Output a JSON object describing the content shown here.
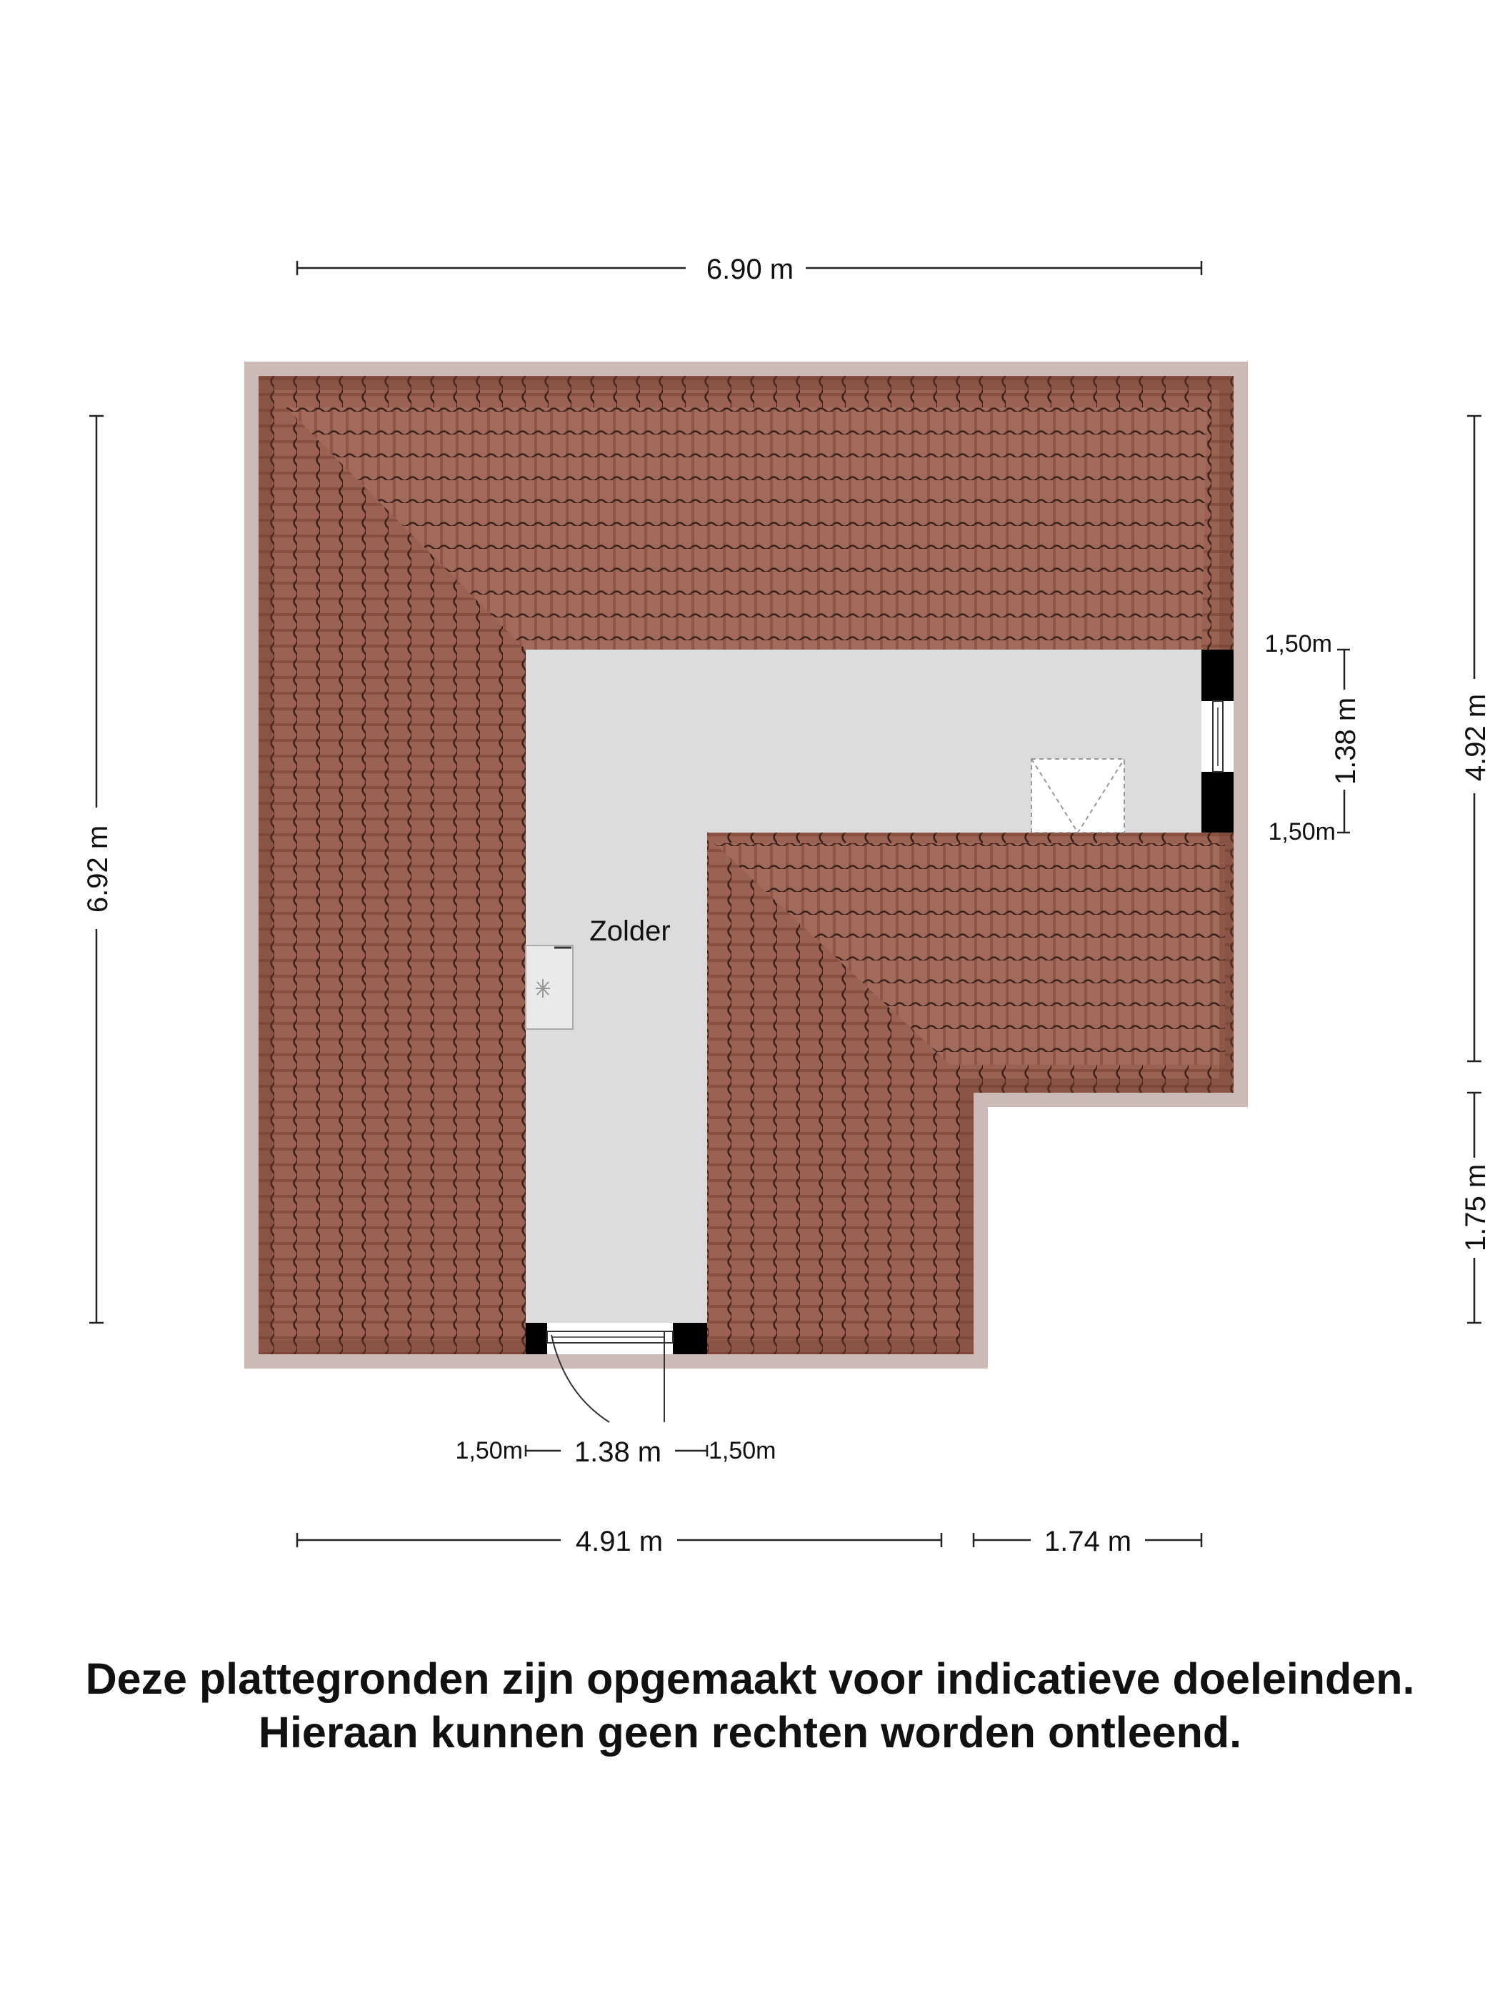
{
  "room": {
    "name": "Zolder"
  },
  "dimensions": {
    "top_width": "6.90 m",
    "left_height": "6.92 m",
    "right_upper": "4.92 m",
    "right_lower": "1.75 m",
    "window_width": "1.38 m",
    "window_top_height": "1,50m",
    "window_bottom_height": "1,50m",
    "door_width": "1.38 m",
    "door_left_height": "1,50m",
    "door_right_height": "1,50m",
    "bottom_left": "4.91 m",
    "bottom_right": "1.74 m"
  },
  "disclaimer": {
    "line1": "Deze plattegronden zijn opgemaakt voor indicatieve doeleinden.",
    "line2": "Hieraan kunnen geen rechten worden ontleend."
  },
  "colors": {
    "roof": "#9c6152",
    "roof_dark": "#7a4538",
    "floor": "#dcdcdc",
    "wall": "#000000"
  }
}
